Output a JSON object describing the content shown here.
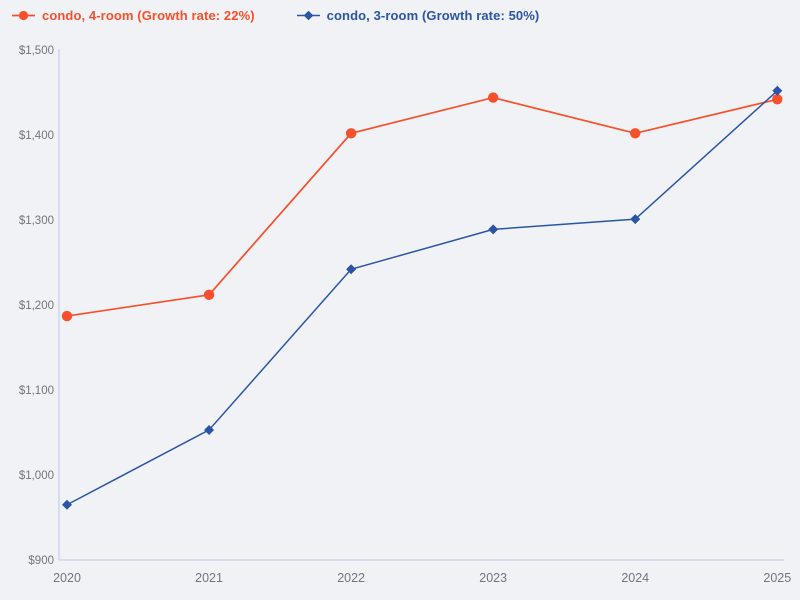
{
  "page": {
    "background_color": "#f0f2f5",
    "axis_color": "#c7d2e6",
    "tick_label_color": "#72767c"
  },
  "chart_data": {
    "type": "line",
    "title": "",
    "xlabel": "",
    "ylabel": "",
    "grid": false,
    "legend_position": "top-left",
    "categories": [
      "2020",
      "2021",
      "2022",
      "2023",
      "2024",
      "2025"
    ],
    "series": [
      {
        "name": "condo, 4-room (Growth rate: 22%)",
        "color": "#f8502a",
        "marker": "circle",
        "values": [
          1187,
          1212,
          1402,
          1444,
          1402,
          1442
        ]
      },
      {
        "name": "condo, 3-room (Growth rate: 50%)",
        "color": "#2a55a5",
        "marker": "diamond",
        "values": [
          965,
          1053,
          1242,
          1289,
          1301,
          1452
        ]
      }
    ],
    "ylim": [
      900,
      1500
    ],
    "y_ticks": [
      {
        "value": 900,
        "label": "$900"
      },
      {
        "value": 1000,
        "label": "$1,000"
      },
      {
        "value": 1100,
        "label": "$1,100"
      },
      {
        "value": 1200,
        "label": "$1,200"
      },
      {
        "value": 1300,
        "label": "$1,300"
      },
      {
        "value": 1400,
        "label": "$1,400"
      },
      {
        "value": 1500,
        "label": "$1,500"
      }
    ]
  }
}
